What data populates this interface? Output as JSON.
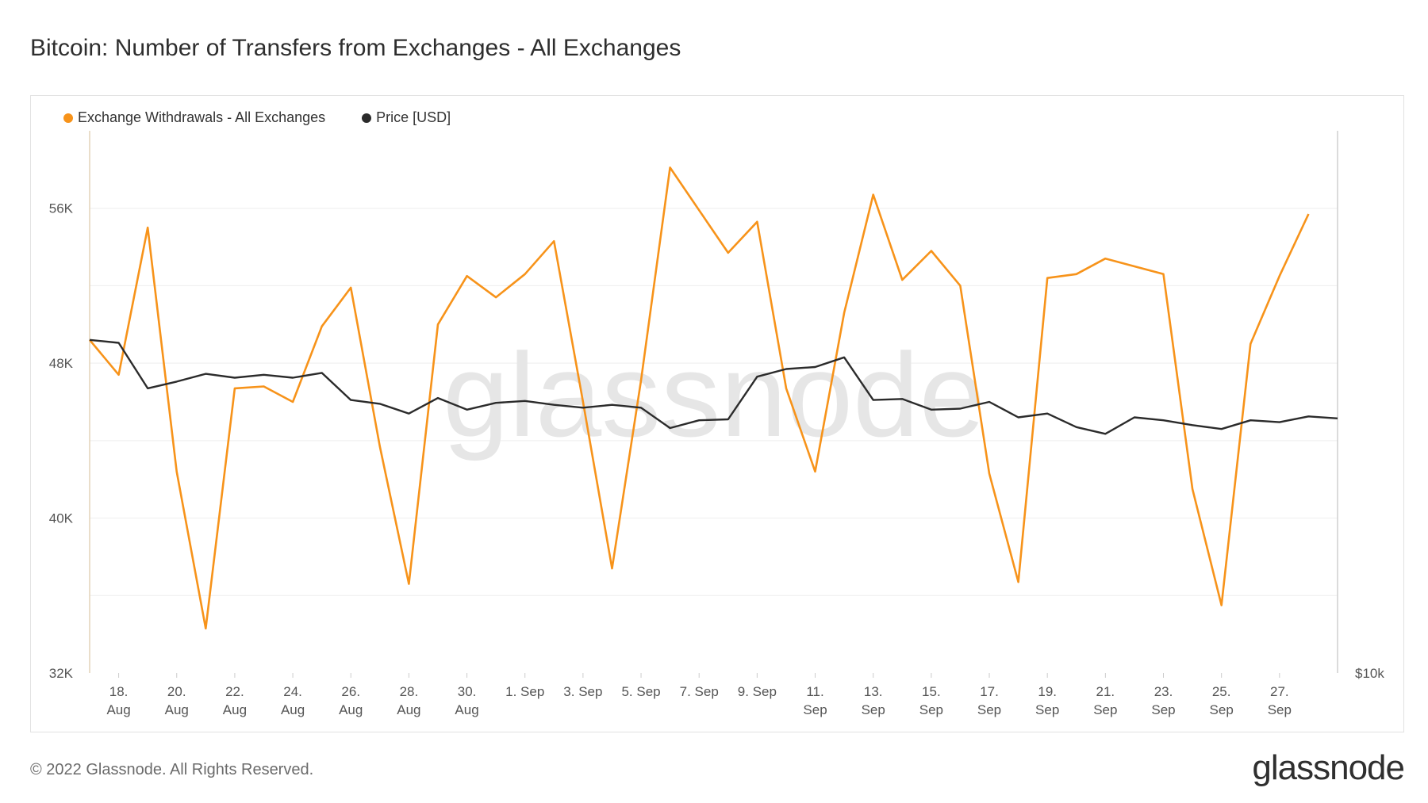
{
  "title": "Bitcoin: Number of Transfers from Exchanges - All Exchanges",
  "legend": [
    {
      "label": "Exchange Withdrawals - All Exchanges",
      "color": "#f7931a"
    },
    {
      "label": "Price [USD]",
      "color": "#2b2b2b"
    }
  ],
  "watermark": "glassnode",
  "footer": "© 2022 Glassnode. All Rights Reserved.",
  "brand": "glassnode",
  "chart_data": {
    "type": "line",
    "title": "Bitcoin: Number of Transfers from Exchanges - All Exchanges",
    "x_tick_labels": [
      [
        "18.",
        "Aug"
      ],
      [
        "20.",
        "Aug"
      ],
      [
        "22.",
        "Aug"
      ],
      [
        "24.",
        "Aug"
      ],
      [
        "26.",
        "Aug"
      ],
      [
        "28.",
        "Aug"
      ],
      [
        "30.",
        "Aug"
      ],
      [
        "1. Sep",
        ""
      ],
      [
        "3. Sep",
        ""
      ],
      [
        "5. Sep",
        ""
      ],
      [
        "7. Sep",
        ""
      ],
      [
        "9. Sep",
        ""
      ],
      [
        "11.",
        "Sep"
      ],
      [
        "13.",
        "Sep"
      ],
      [
        "15.",
        "Sep"
      ],
      [
        "17.",
        "Sep"
      ],
      [
        "19.",
        "Sep"
      ],
      [
        "21.",
        "Sep"
      ],
      [
        "23.",
        "Sep"
      ],
      [
        "25.",
        "Sep"
      ],
      [
        "27.",
        "Sep"
      ]
    ],
    "y_left_ticks": [
      "56K",
      "48K",
      "40K",
      "32K"
    ],
    "y_left_tick_values": [
      56000,
      48000,
      40000,
      32000
    ],
    "y_left_range": [
      32000,
      60000
    ],
    "y_right_ticks": [
      "$10k"
    ],
    "grid": true,
    "legend_position": "top-left",
    "series": [
      {
        "name": "Exchange Withdrawals - All Exchanges",
        "color": "#f7931a",
        "axis": "left",
        "values": [
          49200,
          47400,
          55000,
          42400,
          34300,
          46700,
          46800,
          46000,
          49900,
          51900,
          43700,
          36600,
          50000,
          52500,
          51400,
          52600,
          54300,
          46000,
          37400,
          47100,
          58100,
          55900,
          53700,
          55300,
          46700,
          42400,
          50600,
          56700,
          52300,
          53800,
          52000,
          42300,
          36700,
          52400,
          52600,
          53400,
          53000,
          52600,
          41500,
          35500,
          49000,
          52500,
          55700
        ]
      },
      {
        "name": "Price [USD]",
        "color": "#2b2b2b",
        "axis": "right",
        "values": [
          49200,
          49050,
          46700,
          47050,
          47450,
          47250,
          47400,
          47250,
          47500,
          46100,
          45900,
          45400,
          46200,
          45600,
          45950,
          46050,
          45850,
          45700,
          45850,
          45700,
          44650,
          45050,
          45100,
          47300,
          47700,
          47800,
          48300,
          46100,
          46150,
          45600,
          45650,
          46000,
          45200,
          45400,
          44700,
          44350,
          45200,
          45050,
          44800,
          44600,
          45050,
          44950,
          45250,
          45150
        ]
      }
    ]
  }
}
